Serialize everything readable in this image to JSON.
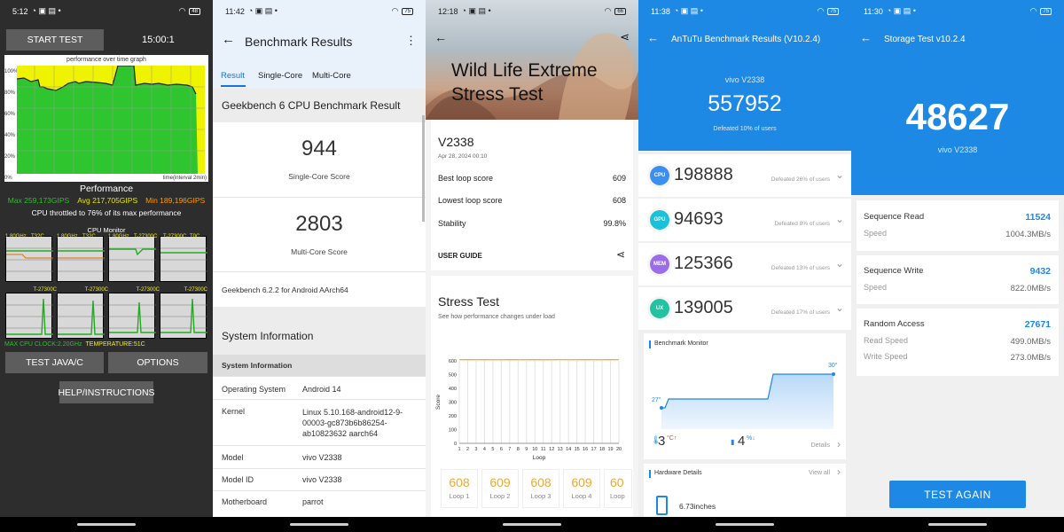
{
  "s1": {
    "time": "5:12",
    "battery": "48",
    "start_btn": "START TEST",
    "timer": "15:00:1",
    "graph_title": "performance over time graph",
    "y_ticks": [
      "100%",
      "80%",
      "60%",
      "40%",
      "20%",
      "0%"
    ],
    "graph_note": "time(interval 2min)",
    "perf_title": "Performance",
    "max": "Max 259,173GIPS",
    "avg": "Avg 217,705GIPS",
    "min": "Min 189,196GIPS",
    "throttle": "CPU throttled to 76% of its max performance",
    "monitor_title": "CPU Monitor",
    "cell_labels_top": [
      "1.80GHz",
      "T32C",
      "1.80GHz",
      "T32C",
      "1.80GHz",
      "T-27300C",
      "T-27300C",
      "T0C"
    ],
    "cell_labels_mid": [
      "T-27300C",
      "T-27300C",
      "T-27300C",
      "T-27300C"
    ],
    "max_clock": "MAX CPU CLOCK:2.20GHz",
    "temperature": "TEMPERATURE:51C",
    "test_java": "TEST JAVA/C",
    "options": "OPTIONS",
    "help": "HELP/INSTRUCTIONS",
    "colors": {
      "green": "#29c12a",
      "yellow": "#f2f200",
      "red": "#ff4a4a",
      "orange": "#ff9900"
    }
  },
  "s2": {
    "time": "11:42",
    "battery": "75",
    "title": "Benchmark Results",
    "tabs": [
      "Result",
      "Single-Core",
      "Multi-Core"
    ],
    "result_title": "Geekbench 6 CPU Benchmark Result",
    "single_score": "944",
    "single_label": "Single-Core Score",
    "multi_score": "2803",
    "multi_label": "Multi-Core Score",
    "version": "Geekbench 6.2.2 for Android AArch64",
    "sysinfo_title": "System Information",
    "sysinfo_header": "System Information",
    "rows": [
      {
        "k": "Operating System",
        "v": "Android 14"
      },
      {
        "k": "Kernel",
        "v": "Linux 5.10.168-android12-9-00003-gc873b6b86254-ab10823632 aarch64"
      },
      {
        "k": "Model",
        "v": "vivo V2338"
      },
      {
        "k": "Model ID",
        "v": "vivo V2338"
      },
      {
        "k": "Motherboard",
        "v": "parrot"
      }
    ],
    "accent": "#1976d2"
  },
  "s3": {
    "time": "12:18",
    "battery": "66",
    "title": "Wild Life Extreme Stress Test",
    "device": "V2338",
    "date": "Apr 28, 2024 00:10",
    "best_label": "Best loop score",
    "best": "609",
    "lowest_label": "Lowest loop score",
    "lowest": "608",
    "stability_label": "Stability",
    "stability": "99.8%",
    "guide": "USER GUIDE",
    "stress_title": "Stress Test",
    "stress_sub": "See how performance changes under load",
    "y_label": "Score",
    "x_label": "Loop",
    "y_ticks": [
      "600",
      "500",
      "400",
      "300",
      "200",
      "100",
      "0"
    ],
    "x_ticks": [
      "1",
      "2",
      "3",
      "4",
      "5",
      "6",
      "7",
      "8",
      "9",
      "10",
      "11",
      "12",
      "13",
      "14",
      "15",
      "16",
      "17",
      "18",
      "19",
      "20"
    ],
    "loops": [
      {
        "score": "608",
        "label": "Loop 1"
      },
      {
        "score": "609",
        "label": "Loop 2"
      },
      {
        "score": "608",
        "label": "Loop 3"
      },
      {
        "score": "609",
        "label": "Loop 4"
      },
      {
        "score": "60",
        "label": "Loop"
      }
    ],
    "accent": "#f0a830"
  },
  "s4": {
    "time": "11:38",
    "battery": "75",
    "title": "AnTuTu Benchmark Results (V10.2.4)",
    "device": "vivo V2338",
    "total": "557952",
    "defeated": "Defeated 10% of users",
    "subs": [
      {
        "badge": "CPU",
        "score": "198888",
        "def": "Defeated 26% of users",
        "color": "#3b8ff0"
      },
      {
        "badge": "GPU",
        "score": "94693",
        "def": "Defeated 8% of users",
        "color": "#19c1d9"
      },
      {
        "badge": "MEM",
        "score": "125366",
        "def": "Defeated 13% of users",
        "color": "#9b6de8"
      },
      {
        "badge": "UX",
        "score": "139005",
        "def": "Defeated 17% of users",
        "color": "#22c3a0"
      }
    ],
    "monitor_title": "Benchmark Monitor",
    "temp_start": "27°",
    "temp_end": "30°",
    "temp_rise": "3",
    "temp_unit": "°C↑",
    "bat_drop": "4",
    "bat_unit": "%↓",
    "details": "Details",
    "hw_title": "Hardware Details",
    "view_all": "View all",
    "screen_size": "6.73inches",
    "accent": "#1e88e5"
  },
  "s5": {
    "time": "11:30",
    "battery": "75",
    "title": "Storage Test v10.2.4",
    "score": "48627",
    "device": "vivo V2338",
    "seq_read_label": "Sequence Read",
    "seq_read": "11524",
    "seq_read_speed_label": "Speed",
    "seq_read_speed": "1004.3MB/s",
    "seq_write_label": "Sequence Write",
    "seq_write": "9432",
    "seq_write_speed_label": "Speed",
    "seq_write_speed": "822.0MB/s",
    "random_label": "Random Access",
    "random": "27671",
    "read_speed_label": "Read Speed",
    "read_speed": "499.0MB/s",
    "write_speed_label": "Write Speed",
    "write_speed": "273.0MB/s",
    "button": "TEST AGAIN",
    "accent": "#1e88e5"
  }
}
